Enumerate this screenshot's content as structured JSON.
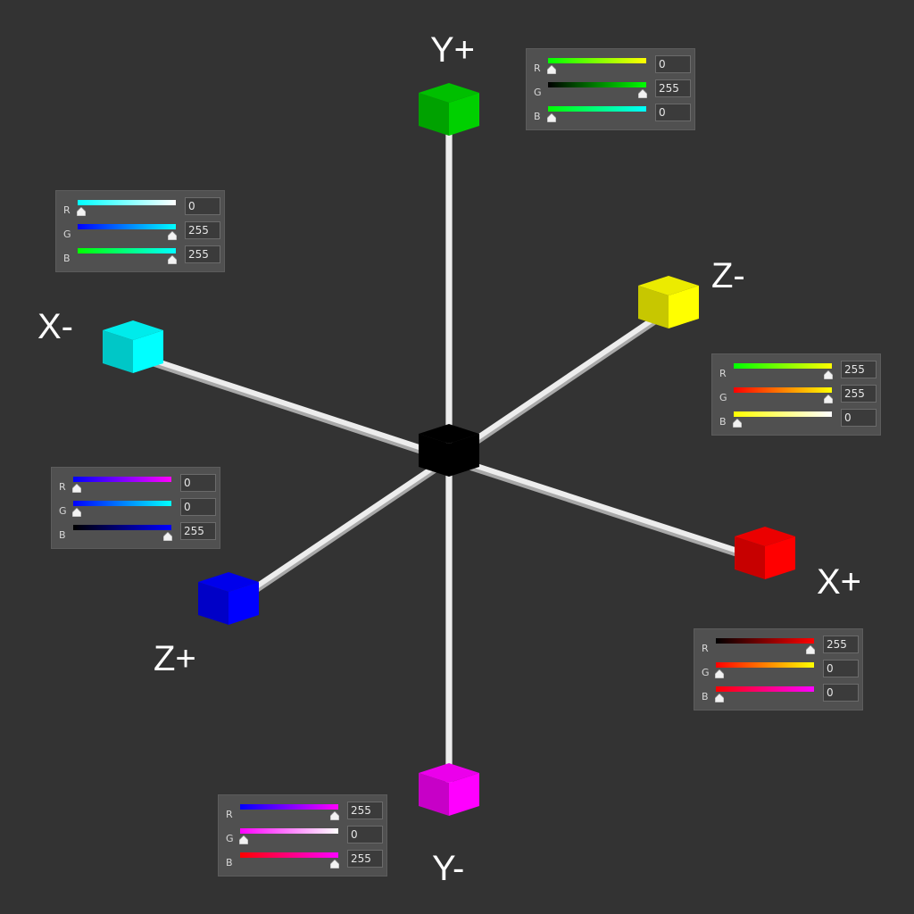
{
  "axes": [
    {
      "id": "y-plus",
      "label": "Y+",
      "color": "#00d000"
    },
    {
      "id": "y-minus",
      "label": "Y-",
      "color": "#ff00ff"
    },
    {
      "id": "x-plus",
      "label": "X+",
      "color": "#ff0000"
    },
    {
      "id": "x-minus",
      "label": "X-",
      "color": "#00ffff"
    },
    {
      "id": "z-plus",
      "label": "Z+",
      "color": "#0000ff"
    },
    {
      "id": "z-minus",
      "label": "Z-",
      "color": "#ffff00"
    }
  ],
  "center_color": "#000000",
  "panels": [
    {
      "id": "y-plus",
      "rows": [
        {
          "ch": "R",
          "value": "0",
          "level": 0,
          "from": "#00ff00",
          "to": "#ffff00"
        },
        {
          "ch": "G",
          "value": "255",
          "level": 1,
          "from": "#000000",
          "to": "#00ff00"
        },
        {
          "ch": "B",
          "value": "0",
          "level": 0,
          "from": "#00ff00",
          "to": "#00ffff"
        }
      ]
    },
    {
      "id": "x-minus",
      "rows": [
        {
          "ch": "R",
          "value": "0",
          "level": 0,
          "from": "#00ffff",
          "to": "#ffffff"
        },
        {
          "ch": "G",
          "value": "255",
          "level": 1,
          "from": "#0000ff",
          "to": "#00ffff"
        },
        {
          "ch": "B",
          "value": "255",
          "level": 1,
          "from": "#00ff00",
          "to": "#00ffff"
        }
      ]
    },
    {
      "id": "z-minus",
      "rows": [
        {
          "ch": "R",
          "value": "255",
          "level": 1,
          "from": "#00ff00",
          "to": "#ffff00"
        },
        {
          "ch": "G",
          "value": "255",
          "level": 1,
          "from": "#ff0000",
          "to": "#ffff00"
        },
        {
          "ch": "B",
          "value": "0",
          "level": 0,
          "from": "#ffff00",
          "to": "#ffffff"
        }
      ]
    },
    {
      "id": "z-plus",
      "rows": [
        {
          "ch": "R",
          "value": "0",
          "level": 0,
          "from": "#0000ff",
          "to": "#ff00ff"
        },
        {
          "ch": "G",
          "value": "0",
          "level": 0,
          "from": "#0000ff",
          "to": "#00ffff"
        },
        {
          "ch": "B",
          "value": "255",
          "level": 1,
          "from": "#000000",
          "to": "#0000ff"
        }
      ]
    },
    {
      "id": "x-plus",
      "rows": [
        {
          "ch": "R",
          "value": "255",
          "level": 1,
          "from": "#000000",
          "to": "#ff0000"
        },
        {
          "ch": "G",
          "value": "0",
          "level": 0,
          "from": "#ff0000",
          "to": "#ffff00"
        },
        {
          "ch": "B",
          "value": "0",
          "level": 0,
          "from": "#ff0000",
          "to": "#ff00ff"
        }
      ]
    },
    {
      "id": "y-minus",
      "rows": [
        {
          "ch": "R",
          "value": "255",
          "level": 1,
          "from": "#0000ff",
          "to": "#ff00ff"
        },
        {
          "ch": "G",
          "value": "0",
          "level": 0,
          "from": "#ff00ff",
          "to": "#ffffff"
        },
        {
          "ch": "B",
          "value": "255",
          "level": 1,
          "from": "#ff0000",
          "to": "#ff00ff"
        }
      ]
    }
  ]
}
